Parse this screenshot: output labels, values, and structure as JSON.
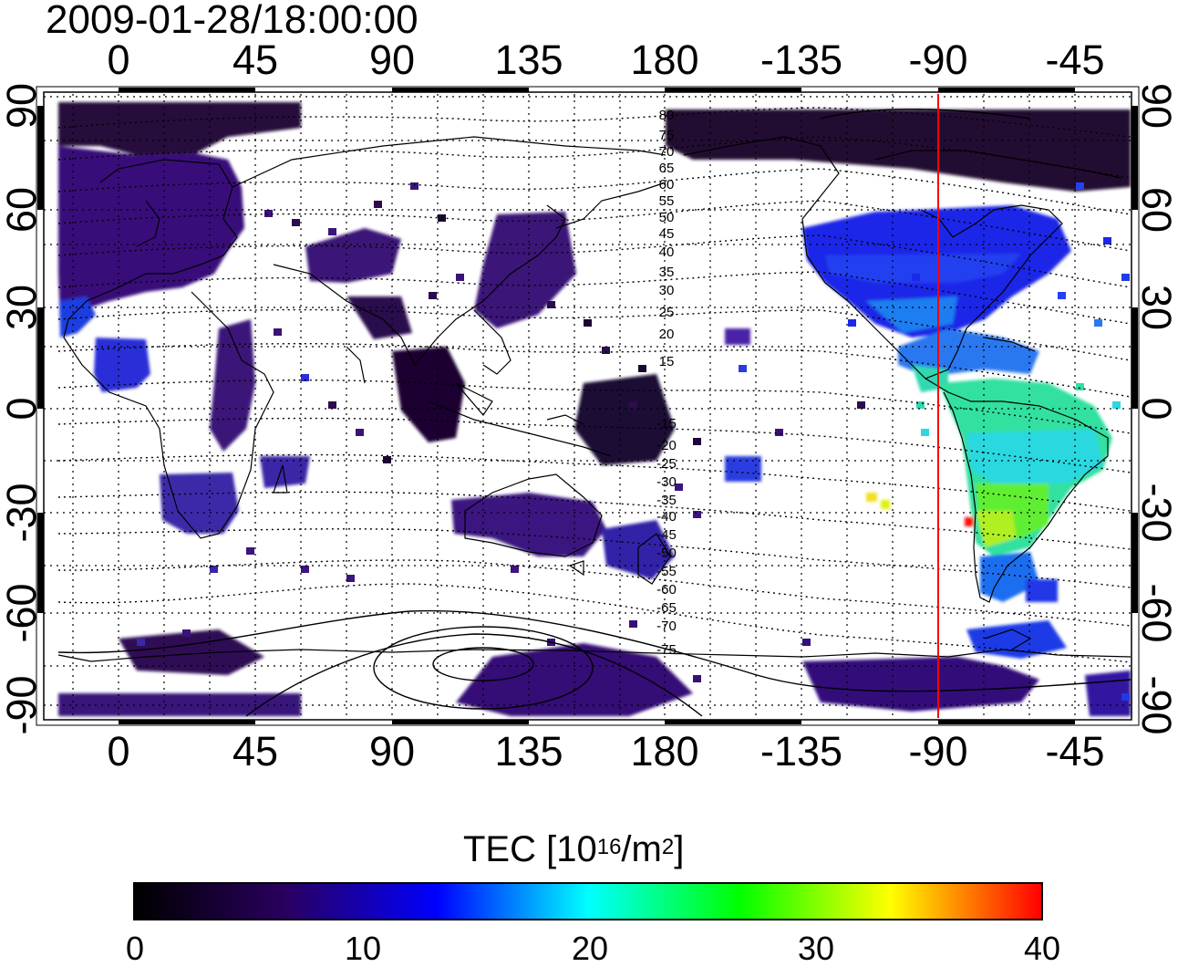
{
  "timestamp": "2009-01-28/18:00:00",
  "axes": {
    "lon_ticks": [
      "0",
      "45",
      "90",
      "135",
      "180",
      "-135",
      "-90",
      "-45"
    ],
    "lat_ticks": [
      "90",
      "60",
      "30",
      "0",
      "-30",
      "-60",
      "-90"
    ]
  },
  "contour_labels": [
    "80",
    "75",
    "70",
    "65",
    "60",
    "55",
    "50",
    "45",
    "40",
    "35",
    "30",
    "25",
    "20",
    "15",
    "-15",
    "-20",
    "-25",
    "-30",
    "-35",
    "-40",
    "-45",
    "-50",
    "-55",
    "-60",
    "-65",
    "-70",
    "-75"
  ],
  "marker_longitude": "-90",
  "colorbar": {
    "title_main": "TEC  [10",
    "title_sup1": "16",
    "title_mid": "/m",
    "title_sup2": "2",
    "title_end": "]",
    "ticks": [
      "0",
      "10",
      "20",
      "30",
      "40"
    ],
    "colors": [
      "#000000",
      "#2a0060",
      "#0000ff",
      "#00ffff",
      "#00ff00",
      "#ffff00",
      "#ff0000"
    ]
  },
  "colors": {
    "marker_line": "#ff0000",
    "coastline": "#000000"
  }
}
